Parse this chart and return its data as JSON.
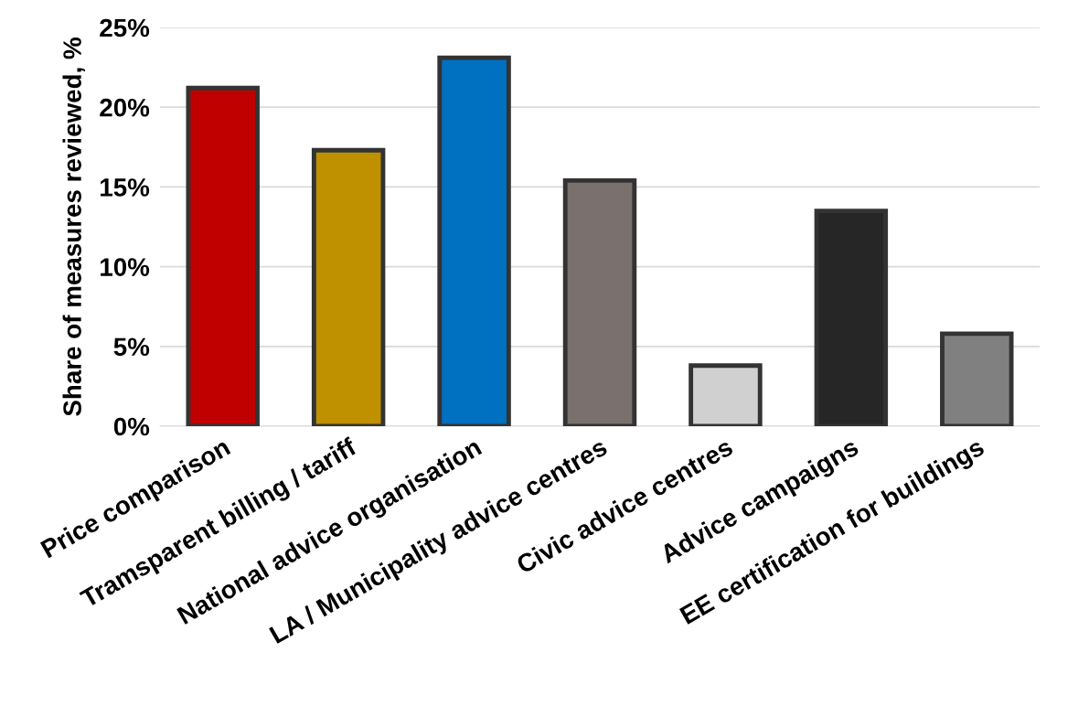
{
  "chart_data": {
    "type": "bar",
    "ylabel": "Share of measures reviewed, %",
    "categories": [
      "Price comparison",
      "Tramsparent billing / tariff",
      "National advice organisation",
      "LA / Municipality advice centres",
      "Civic advice centres",
      "Advice campaigns",
      "EE certification for buildings"
    ],
    "values": [
      21.2,
      17.3,
      23.1,
      15.4,
      3.8,
      13.5,
      5.8
    ],
    "colors": [
      "#c00000",
      "#bf9000",
      "#0070c0",
      "#7a706e",
      "#d0d0d0",
      "#262626",
      "#808080"
    ],
    "ylim": [
      0,
      25
    ],
    "yticks": [
      {
        "value": 0,
        "label": "0%"
      },
      {
        "value": 5,
        "label": "5%"
      },
      {
        "value": 10,
        "label": "10%"
      },
      {
        "value": 15,
        "label": "15%"
      },
      {
        "value": 20,
        "label": "20%"
      },
      {
        "value": 25,
        "label": "25%"
      }
    ],
    "grid": "y",
    "legend": false
  }
}
